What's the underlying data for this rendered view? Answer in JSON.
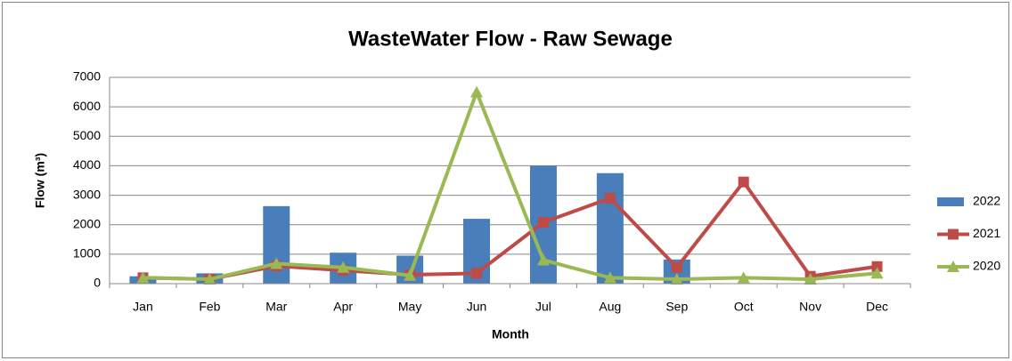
{
  "chart_data": {
    "type": "combo",
    "title": "WasteWater Flow - Raw Sewage",
    "x_label": "Month",
    "y_label": "Flow (m³)",
    "categories": [
      "Jan",
      "Feb",
      "Mar",
      "Apr",
      "May",
      "Jun",
      "Jul",
      "Aug",
      "Sep",
      "Oct",
      "Nov",
      "Dec"
    ],
    "series": [
      {
        "name": "2022",
        "type": "bar",
        "color": "#4a7ebb",
        "values": [
          250,
          350,
          2630,
          1050,
          950,
          2200,
          4000,
          3750,
          820,
          null,
          null,
          null
        ]
      },
      {
        "name": "2021",
        "type": "line",
        "marker": "square",
        "color": "#be4b48",
        "values": [
          200,
          150,
          600,
          450,
          300,
          350,
          2080,
          2900,
          550,
          3450,
          250,
          580
        ]
      },
      {
        "name": "2020",
        "type": "line",
        "marker": "triangle",
        "color": "#98b954",
        "values": [
          200,
          150,
          680,
          550,
          280,
          6500,
          800,
          200,
          150,
          200,
          150,
          350
        ]
      }
    ],
    "ylim": [
      0,
      7000
    ],
    "yticks": [
      0,
      1000,
      2000,
      3000,
      4000,
      5000,
      6000,
      7000
    ],
    "grid": true,
    "legend": "right"
  }
}
